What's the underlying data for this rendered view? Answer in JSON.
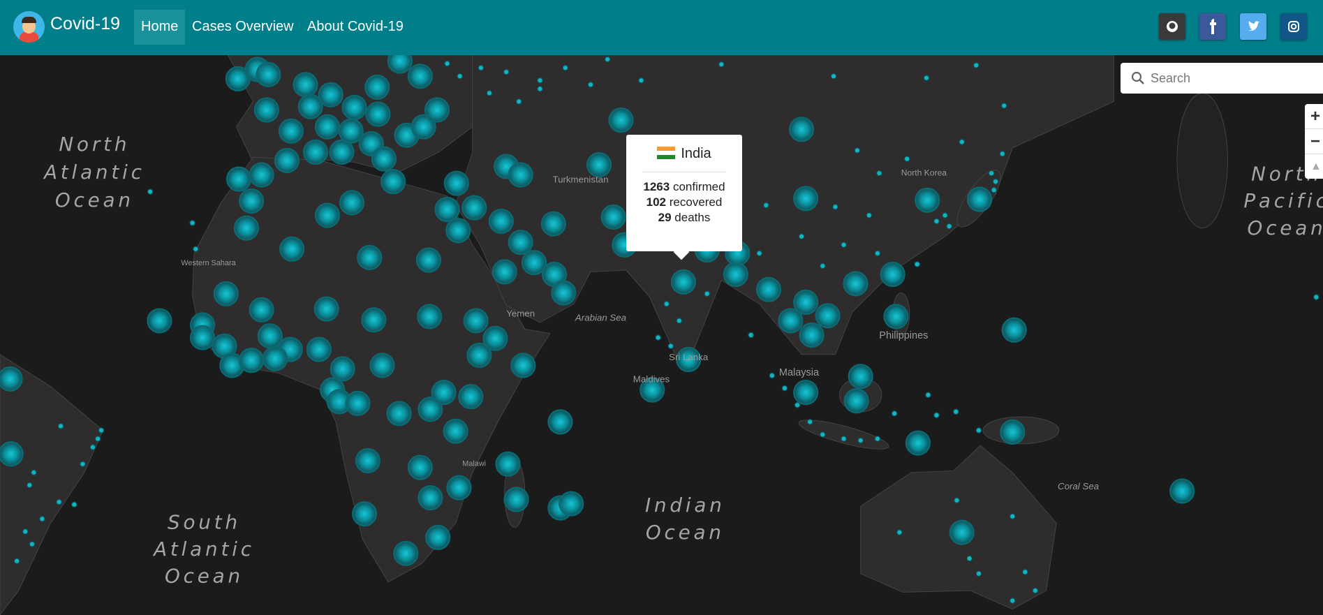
{
  "navbar": {
    "brand": "Covid-19",
    "links": [
      "Home",
      "Cases Overview",
      "About Covid-19"
    ]
  },
  "search": {
    "placeholder": "Search"
  },
  "zoom": {
    "in": "+",
    "out": "−"
  },
  "popup": {
    "country": "India",
    "confirmed": 1263,
    "confirmed_label": "confirmed",
    "recovered": 102,
    "recovered_label": "recovered",
    "deaths": 29,
    "deaths_label": "deaths"
  },
  "map_labels": {
    "oceans": [
      {
        "lines": [
          "North",
          "Atlantic",
          "Ocean"
        ]
      },
      {
        "lines": [
          "South",
          "Atlantic",
          "Ocean"
        ]
      },
      {
        "lines": [
          "Indian",
          "Ocean"
        ]
      },
      {
        "lines": [
          "North",
          "Pacific",
          "Ocean"
        ]
      }
    ],
    "places": [
      "Turkmenistan",
      "Yemen",
      "Arabian Sea",
      "Philippines",
      "Malaysia",
      "Sri Lanka",
      "Maldives",
      "Coral Sea",
      "North Korea",
      "Western Sahara",
      "Malawi"
    ]
  }
}
